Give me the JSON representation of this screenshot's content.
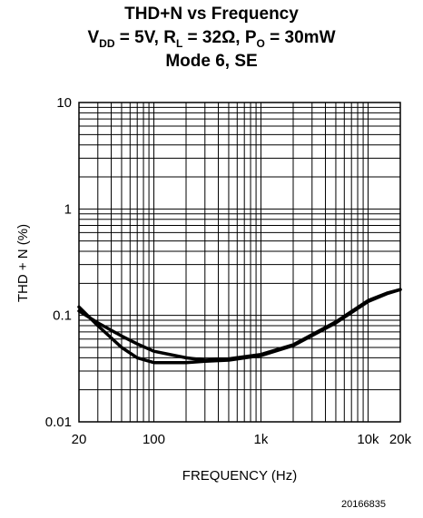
{
  "title": {
    "line1": "THD+N vs Frequency",
    "line2": {
      "vdd_label": "V",
      "vdd_sub": "DD",
      "vdd_value": " = 5V, R",
      "rl_sub": "L",
      "rl_value": " = 32Ω, P",
      "po_sub": "O",
      "po_value": " = 30mW"
    },
    "line3": "Mode 6, SE"
  },
  "figure_number": "20166835",
  "chart_data": {
    "type": "line",
    "xlabel": "FREQUENCY (Hz)",
    "ylabel": "THD + N (%)",
    "x_scale": "log",
    "y_scale": "log",
    "xlim": [
      20,
      20000
    ],
    "ylim": [
      0.01,
      10
    ],
    "x_ticks": [
      {
        "value": 20,
        "label": "20"
      },
      {
        "value": 100,
        "label": "100"
      },
      {
        "value": 1000,
        "label": "1k"
      },
      {
        "value": 10000,
        "label": "10k"
      },
      {
        "value": 20000,
        "label": "20k"
      }
    ],
    "y_ticks": [
      {
        "value": 0.01,
        "label": "0.01"
      },
      {
        "value": 0.1,
        "label": "0.1"
      },
      {
        "value": 1,
        "label": "1"
      },
      {
        "value": 10,
        "label": "10"
      }
    ],
    "grid": true,
    "series": [
      {
        "x": [
          20,
          30,
          50,
          70,
          100,
          200,
          300,
          500,
          1000,
          2000,
          5000,
          10000,
          15000,
          20000
        ],
        "y": [
          0.12,
          0.08,
          0.05,
          0.04,
          0.036,
          0.036,
          0.037,
          0.038,
          0.042,
          0.052,
          0.085,
          0.135,
          0.16,
          0.175
        ]
      },
      {
        "x": [
          20,
          30,
          50,
          70,
          100,
          200,
          300,
          500,
          1000,
          2000,
          5000,
          10000,
          15000,
          20000
        ],
        "y": [
          0.11,
          0.085,
          0.064,
          0.054,
          0.046,
          0.04,
          0.038,
          0.039,
          0.043,
          0.053,
          0.087,
          0.138,
          0.162,
          0.175
        ]
      }
    ]
  }
}
